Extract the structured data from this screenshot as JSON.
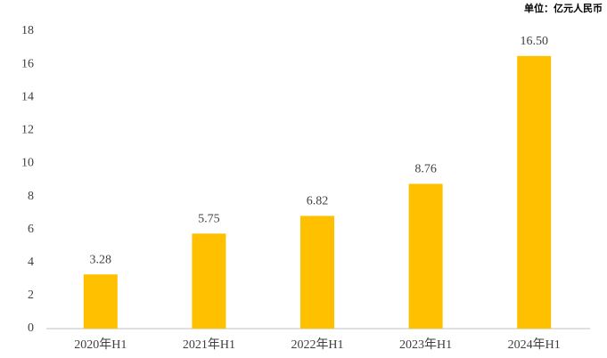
{
  "chart_data": {
    "type": "bar",
    "annotation": "单位：亿元人民币",
    "categories": [
      "2020年H1",
      "2021年H1",
      "2022年H1",
      "2023年H1",
      "2024年H1"
    ],
    "values": [
      3.28,
      5.75,
      6.82,
      8.76,
      16.5
    ],
    "value_labels": [
      "3.28",
      "5.75",
      "6.82",
      "8.76",
      "16.50"
    ],
    "color": "#FFC000",
    "ylim": [
      0,
      18
    ],
    "yticks": [
      0,
      2,
      4,
      6,
      8,
      10,
      12,
      14,
      16,
      18
    ],
    "grid": false
  }
}
